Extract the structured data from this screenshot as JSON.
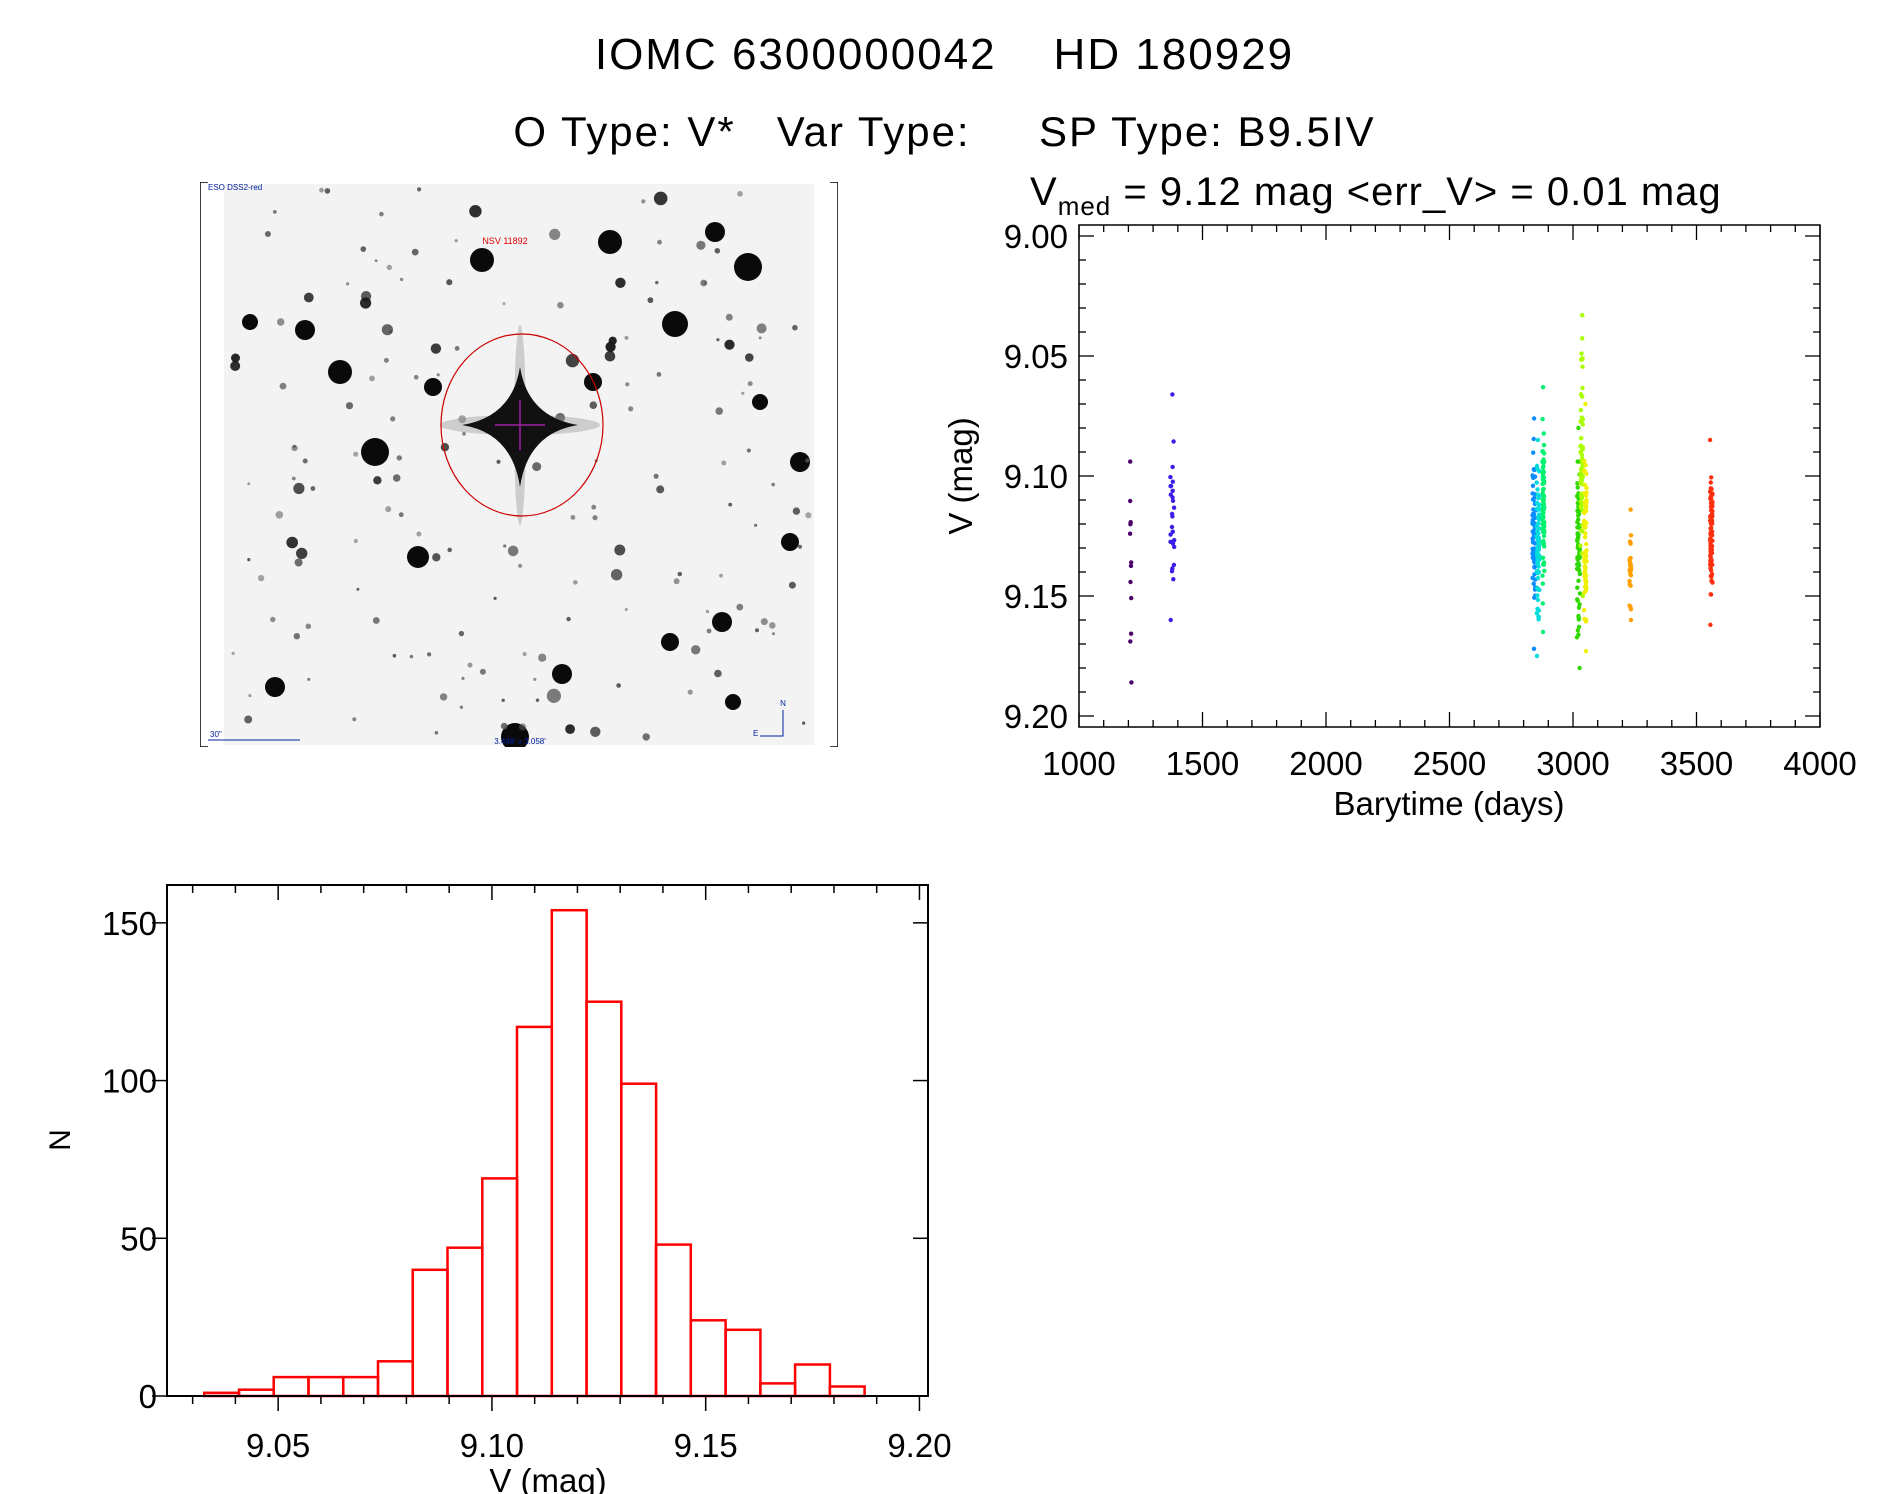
{
  "header": {
    "title_line1": "IOMC 6300000042    HD 180929",
    "title_line2": "O Type: V*   Var Type:     SP Type: B9.5IV"
  },
  "finder_image": {
    "survey_label": "ESO DSS2-red",
    "target_label": "NSV 11892",
    "scale_label": "30\"",
    "field_size_label": "3.448' x 3.058'",
    "north_label": "N",
    "east_label": "E"
  },
  "chart_data": [
    {
      "type": "scatter",
      "title_prefix": "V",
      "title_subscript": "med",
      "title_rest": " = 9.12 mag <err_V> = 0.01 mag",
      "xlabel": "Barytime (days)",
      "ylabel": "V (mag)",
      "xlim": [
        1000,
        4000
      ],
      "ylim": [
        9.2,
        9.0
      ],
      "y_inverted": true,
      "xticks": [
        "1000",
        "1500",
        "2000",
        "2500",
        "3000",
        "3500",
        "4000"
      ],
      "yticks": [
        "9.00",
        "9.05",
        "9.10",
        "9.15",
        "9.20"
      ],
      "grid": false,
      "clusters": [
        {
          "x": 1210,
          "spread": 4,
          "n": 12,
          "ymin": 9.094,
          "ymax": 9.186,
          "color": "#4b0068"
        },
        {
          "x": 1378,
          "spread": 8,
          "n": 26,
          "ymin": 9.066,
          "ymax": 9.16,
          "color": "#3a1ee8"
        },
        {
          "x": 2842,
          "spread": 6,
          "n": 70,
          "ymin": 9.076,
          "ymax": 9.172,
          "color": "#0a8cff"
        },
        {
          "x": 2858,
          "spread": 6,
          "n": 70,
          "ymin": 9.085,
          "ymax": 9.175,
          "color": "#00dcd8"
        },
        {
          "x": 2880,
          "spread": 4,
          "n": 80,
          "ymin": 9.063,
          "ymax": 9.165,
          "color": "#00f070"
        },
        {
          "x": 3022,
          "spread": 6,
          "n": 70,
          "ymin": 9.08,
          "ymax": 9.18,
          "color": "#30d800"
        },
        {
          "x": 3035,
          "spread": 5,
          "n": 60,
          "ymin": 9.033,
          "ymax": 9.15,
          "color": "#a8ff00"
        },
        {
          "x": 3050,
          "spread": 5,
          "n": 70,
          "ymin": 9.07,
          "ymax": 9.173,
          "color": "#f0f000"
        },
        {
          "x": 3232,
          "spread": 3,
          "n": 28,
          "ymin": 9.114,
          "ymax": 9.16,
          "color": "#ffa000"
        },
        {
          "x": 3560,
          "spread": 5,
          "n": 90,
          "ymin": 9.085,
          "ymax": 9.162,
          "color": "#ff3010"
        }
      ]
    },
    {
      "type": "bar",
      "subtype": "histogram",
      "xlabel": "V (mag)",
      "ylabel": "N",
      "xlim": [
        9.024,
        9.202
      ],
      "ylim": [
        0,
        162
      ],
      "xticks": [
        "9.05",
        "9.10",
        "9.15",
        "9.20"
      ],
      "yticks": [
        "0",
        "50",
        "100",
        "150"
      ],
      "bin_start": 9.0327,
      "bin_width": 0.00813,
      "values": [
        1,
        2,
        6,
        6,
        6,
        11,
        40,
        47,
        69,
        117,
        154,
        125,
        99,
        48,
        24,
        21,
        4,
        10,
        3
      ],
      "bar_color": "#ff0000"
    }
  ]
}
